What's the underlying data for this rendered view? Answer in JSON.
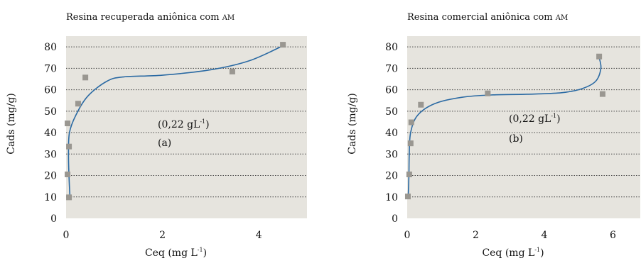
{
  "chart_data": [
    {
      "type": "scatter",
      "title": "Resina recuperada aniônica com AM",
      "xlabel": "Ceq (mg L",
      "xlabel_sup": "-1",
      "xlabel_end": ")",
      "ylabel": "Cads (mg/g)",
      "xlim": [
        0,
        5
      ],
      "ylim": [
        0,
        85
      ],
      "xticks": [
        0,
        2,
        4
      ],
      "yticks": [
        0,
        10,
        20,
        30,
        40,
        50,
        60,
        70,
        80
      ],
      "grid": "horizontal dotted",
      "series": [
        {
          "points": [
            [
              0.06,
              9.8
            ],
            [
              0.03,
              20.5
            ],
            [
              0.06,
              33.5
            ],
            [
              0.03,
              44.3
            ],
            [
              0.25,
              53.5
            ],
            [
              0.4,
              65.7
            ],
            [
              3.45,
              68.5
            ],
            [
              4.5,
              81
            ]
          ]
        }
      ],
      "fit_curve": [
        [
          0.08,
          10
        ],
        [
          0.06,
          20
        ],
        [
          0.05,
          30
        ],
        [
          0.07,
          40
        ],
        [
          0.2,
          48
        ],
        [
          0.45,
          57
        ],
        [
          0.85,
          64
        ],
        [
          1.2,
          66
        ],
        [
          2.0,
          66.8
        ],
        [
          3.0,
          69.3
        ],
        [
          3.8,
          73.5
        ],
        [
          4.5,
          80.5
        ]
      ],
      "annotations": {
        "line1": "(0,22 gL",
        "line1_sup": "-1",
        "line1_end": ")",
        "line2": "(a)"
      }
    },
    {
      "type": "scatter",
      "title": "Resina comercial aniônica com AM",
      "xlabel": "Ceq (mg L",
      "xlabel_sup": "-1",
      "xlabel_end": ")",
      "ylabel": "Cads (mg/g)",
      "xlim": [
        0,
        6.8
      ],
      "ylim": [
        0,
        85
      ],
      "xticks": [
        0,
        2,
        4,
        6
      ],
      "yticks": [
        0,
        10,
        20,
        30,
        40,
        50,
        60,
        70,
        80
      ],
      "grid": "horizontal dotted",
      "series": [
        {
          "points": [
            [
              0.02,
              10.2
            ],
            [
              0.06,
              20.5
            ],
            [
              0.1,
              35
            ],
            [
              0.12,
              44.8
            ],
            [
              0.4,
              53
            ],
            [
              2.35,
              58.3
            ],
            [
              5.6,
              75.5
            ],
            [
              5.7,
              58
            ]
          ]
        }
      ],
      "fit_curve": [
        [
          0.03,
          10
        ],
        [
          0.05,
          20
        ],
        [
          0.06,
          30
        ],
        [
          0.1,
          40
        ],
        [
          0.3,
          48
        ],
        [
          0.8,
          53.5
        ],
        [
          1.6,
          56.5
        ],
        [
          2.5,
          57.6
        ],
        [
          3.5,
          57.9
        ],
        [
          4.5,
          58.6
        ],
        [
          5.1,
          60.5
        ],
        [
          5.5,
          64
        ],
        [
          5.65,
          70
        ],
        [
          5.6,
          75
        ]
      ],
      "annotations": {
        "line1": "(0,22 gL",
        "line1_sup": "-1",
        "line1_end": ")",
        "line2": "(b)"
      }
    }
  ],
  "colors": {
    "plot_bg": "#e6e4de",
    "marker": "#9a9791",
    "curve": "#2b6aa3",
    "grid": "#444444"
  }
}
